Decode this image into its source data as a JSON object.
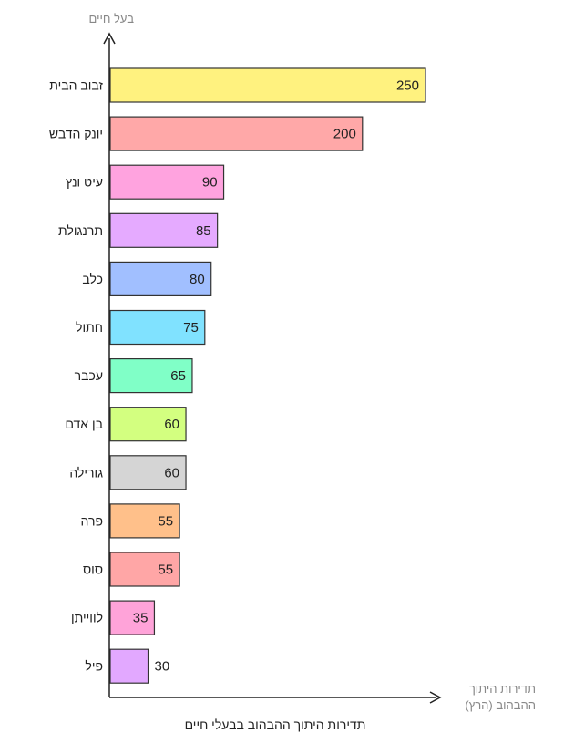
{
  "chart_data": {
    "type": "bar",
    "orientation": "horizontal",
    "title": "תדירות היתוך ההבהוב בבעלי חיים",
    "ylabel": "בעל חיים",
    "xlabel_lines": [
      "תדירות היתוך",
      "ההבהוב (הרץ)"
    ],
    "categories": [
      "זבוב הבית",
      "יונק הדבש",
      "עיט ונץ",
      "תרנגולת",
      "כלב",
      "חתול",
      "עכבר",
      "בן אדם",
      "גורילה",
      "פרה",
      "סוס",
      "לווייתן",
      "פיל"
    ],
    "values": [
      250,
      200,
      90,
      85,
      80,
      75,
      65,
      60,
      60,
      55,
      55,
      35,
      30
    ],
    "colors": [
      "#FFF27F",
      "#FFA8A8",
      "#FFA3DF",
      "#E5AAFF",
      "#A1BFFF",
      "#80E2FF",
      "#80FFC7",
      "#D3FF80",
      "#D5D5D5",
      "#FFC08A",
      "#FFA6A6",
      "#FFA3D9",
      "#E2A8FF"
    ],
    "xlim": [
      0,
      250
    ],
    "grid": false,
    "legend": "none"
  }
}
